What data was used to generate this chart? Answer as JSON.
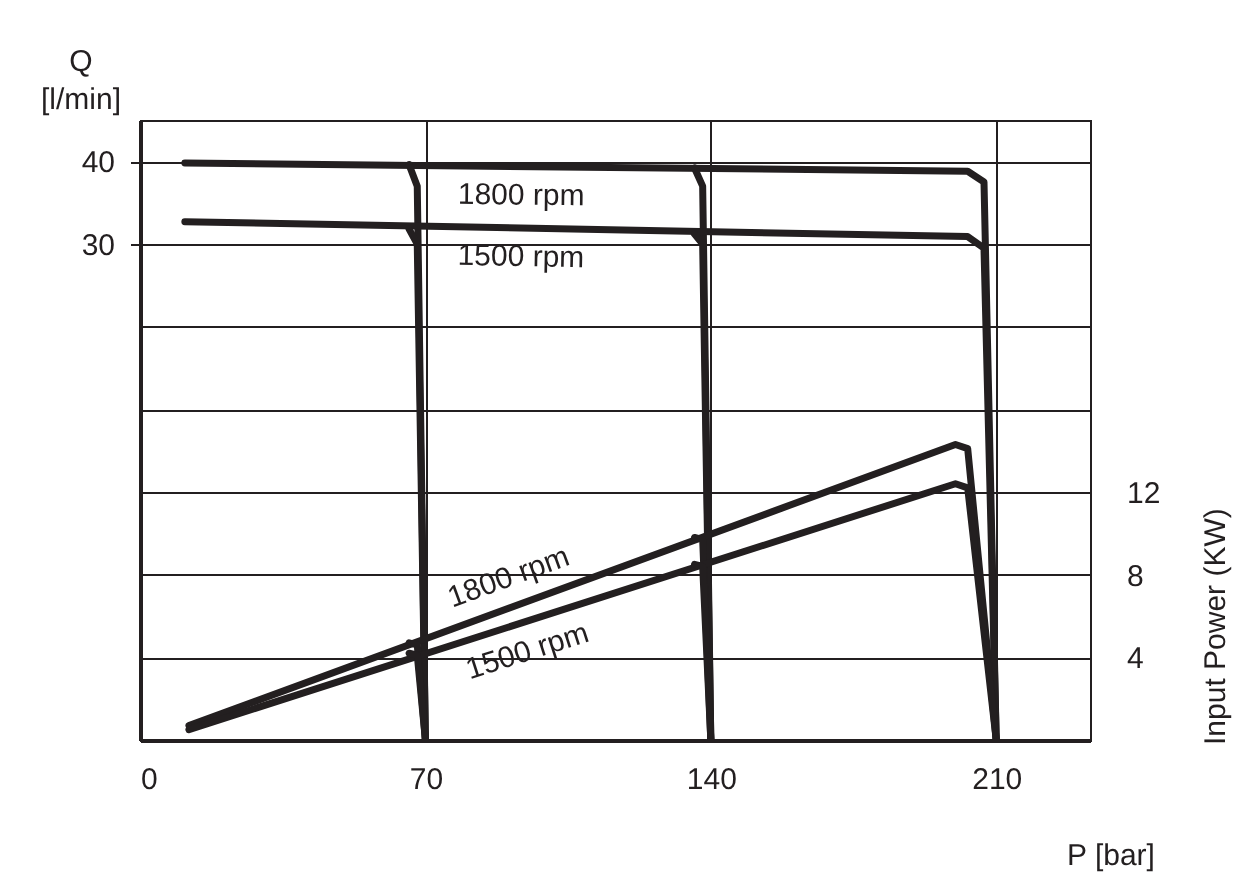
{
  "chart_data": {
    "type": "line",
    "xlabel": "P [bar]",
    "ylabel": "Q [l/min]",
    "y2label": "Input Power (KW)",
    "xlim": [
      0,
      233
    ],
    "xticks": [
      0,
      70,
      140,
      210
    ],
    "ylim": [
      -30,
      45
    ],
    "yticks": [
      30,
      40
    ],
    "y2lim": [
      0,
      30
    ],
    "y2ticks": [
      4,
      8,
      12,
      {
        "value": 16,
        "label": null
      },
      {
        "value": 20,
        "label": null
      },
      {
        "value": 24,
        "label": null
      },
      {
        "value": 28,
        "label": null
      }
    ],
    "grid": true,
    "marker": "none",
    "line_style": "solid",
    "series": [
      {
        "name": "1800 rpm",
        "color": "#231f20",
        "x": [
          11,
          203,
          207,
          210
        ],
        "values": [
          39.8,
          38.8,
          37.5,
          -30
        ]
      },
      {
        "color": "#231f20",
        "x": [
          66,
          68,
          70
        ],
        "values": [
          39.6,
          37,
          -30
        ]
      },
      {
        "color": "#231f20",
        "x": [
          136,
          138,
          140
        ],
        "values": [
          39.2,
          37,
          -30
        ]
      },
      {
        "name": "1500 rpm",
        "color": "#231f20",
        "x": [
          11,
          203,
          207,
          210
        ],
        "values": [
          32.7,
          30.9,
          29.5,
          -30
        ]
      },
      {
        "color": "#231f20",
        "x": [
          66,
          68,
          70
        ],
        "values": [
          31.8,
          30,
          -30
        ]
      },
      {
        "color": "#231f20",
        "x": [
          136,
          138,
          140
        ],
        "values": [
          31.2,
          30,
          -30
        ]
      },
      {
        "name": "1800 rpm",
        "color": "#231f20",
        "axis": "y2",
        "x": [
          12,
          200,
          203,
          210
        ],
        "values": [
          0.7,
          14.3,
          14.1,
          0
        ]
      },
      {
        "color": "#231f20",
        "axis": "y2",
        "x": [
          66,
          68,
          70
        ],
        "values": [
          4.7,
          4.6,
          0
        ]
      },
      {
        "color": "#231f20",
        "axis": "y2",
        "x": [
          136,
          138,
          140
        ],
        "values": [
          9.8,
          9.7,
          0
        ]
      },
      {
        "name": "1500 rpm",
        "color": "#231f20",
        "axis": "y2",
        "x": [
          12,
          200,
          203,
          210
        ],
        "values": [
          0.5,
          12.4,
          12.2,
          0
        ]
      },
      {
        "color": "#231f20",
        "axis": "y2",
        "x": [
          66,
          68,
          70
        ],
        "values": [
          4.2,
          4.1,
          0
        ]
      },
      {
        "color": "#231f20",
        "axis": "y2",
        "x": [
          136,
          138,
          140
        ],
        "values": [
          8.5,
          8.4,
          0
        ]
      }
    ]
  }
}
